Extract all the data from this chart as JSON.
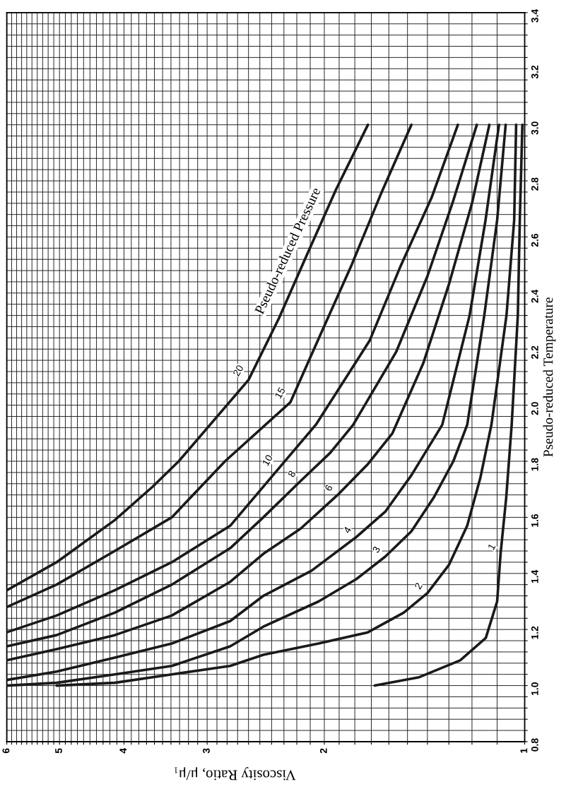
{
  "chart_data": {
    "type": "line",
    "xlabel": "Viscosity Ratio, μ/μ₁",
    "ylabel": "Pseudo-reduced Temperature",
    "log": "x",
    "grid": true,
    "legend": false,
    "marker": "none",
    "line_style": "solid",
    "xlim": [
      6,
      1
    ],
    "ylim": [
      0.8,
      3.4
    ],
    "xticks": [
      {
        "value": 1,
        "label": "1"
      },
      {
        "value": 1.1,
        "label": null
      },
      {
        "value": 1.2,
        "label": null
      },
      {
        "value": 1.3,
        "label": null
      },
      {
        "value": 1.4,
        "label": null
      },
      {
        "value": 1.5,
        "label": null
      },
      {
        "value": 1.6,
        "label": null
      },
      {
        "value": 1.7,
        "label": null
      },
      {
        "value": 1.8,
        "label": null
      },
      {
        "value": 1.9,
        "label": null
      },
      {
        "value": 2,
        "label": "2"
      },
      {
        "value": 2.1,
        "label": null
      },
      {
        "value": 2.2,
        "label": null
      },
      {
        "value": 2.3,
        "label": null
      },
      {
        "value": 2.4,
        "label": null
      },
      {
        "value": 2.5,
        "label": null
      },
      {
        "value": 2.6,
        "label": null
      },
      {
        "value": 2.7,
        "label": null
      },
      {
        "value": 2.8,
        "label": null
      },
      {
        "value": 2.9,
        "label": null
      },
      {
        "value": 3,
        "label": "3"
      },
      {
        "value": 3.1,
        "label": null
      },
      {
        "value": 3.2,
        "label": null
      },
      {
        "value": 3.3,
        "label": null
      },
      {
        "value": 3.4,
        "label": null
      },
      {
        "value": 3.5,
        "label": null
      },
      {
        "value": 3.6,
        "label": null
      },
      {
        "value": 3.7,
        "label": null
      },
      {
        "value": 3.8,
        "label": null
      },
      {
        "value": 3.9,
        "label": null
      },
      {
        "value": 4,
        "label": "4"
      },
      {
        "value": 4.1,
        "label": null
      },
      {
        "value": 4.2,
        "label": null
      },
      {
        "value": 4.3,
        "label": null
      },
      {
        "value": 4.4,
        "label": null
      },
      {
        "value": 4.5,
        "label": null
      },
      {
        "value": 4.6,
        "label": null
      },
      {
        "value": 4.7,
        "label": null
      },
      {
        "value": 4.8,
        "label": null
      },
      {
        "value": 4.9,
        "label": null
      },
      {
        "value": 5,
        "label": "5"
      },
      {
        "value": 5.1,
        "label": null
      },
      {
        "value": 5.2,
        "label": null
      },
      {
        "value": 5.3,
        "label": null
      },
      {
        "value": 5.4,
        "label": null
      },
      {
        "value": 5.5,
        "label": null
      },
      {
        "value": 5.6,
        "label": null
      },
      {
        "value": 5.7,
        "label": null
      },
      {
        "value": 5.8,
        "label": null
      },
      {
        "value": 5.9,
        "label": null
      },
      {
        "value": 6,
        "label": "6"
      }
    ],
    "yticks": [
      {
        "value": 0.8,
        "label": "0.8"
      },
      {
        "value": 0.84,
        "label": null
      },
      {
        "value": 0.88,
        "label": null
      },
      {
        "value": 0.92,
        "label": null
      },
      {
        "value": 0.96,
        "label": null
      },
      {
        "value": 1.0,
        "label": "1.0"
      },
      {
        "value": 1.04,
        "label": null
      },
      {
        "value": 1.08,
        "label": null
      },
      {
        "value": 1.12,
        "label": null
      },
      {
        "value": 1.16,
        "label": null
      },
      {
        "value": 1.2,
        "label": "1.2"
      },
      {
        "value": 1.24,
        "label": null
      },
      {
        "value": 1.28,
        "label": null
      },
      {
        "value": 1.32,
        "label": null
      },
      {
        "value": 1.36,
        "label": null
      },
      {
        "value": 1.4,
        "label": "1.4"
      },
      {
        "value": 1.44,
        "label": null
      },
      {
        "value": 1.48,
        "label": null
      },
      {
        "value": 1.52,
        "label": null
      },
      {
        "value": 1.56,
        "label": null
      },
      {
        "value": 1.6,
        "label": "1.6"
      },
      {
        "value": 1.64,
        "label": null
      },
      {
        "value": 1.68,
        "label": null
      },
      {
        "value": 1.72,
        "label": null
      },
      {
        "value": 1.76,
        "label": null
      },
      {
        "value": 1.8,
        "label": "1.8"
      },
      {
        "value": 1.84,
        "label": null
      },
      {
        "value": 1.88,
        "label": null
      },
      {
        "value": 1.92,
        "label": null
      },
      {
        "value": 1.96,
        "label": null
      },
      {
        "value": 2.0,
        "label": "2.0"
      },
      {
        "value": 2.04,
        "label": null
      },
      {
        "value": 2.08,
        "label": null
      },
      {
        "value": 2.12,
        "label": null
      },
      {
        "value": 2.16,
        "label": null
      },
      {
        "value": 2.2,
        "label": "2.2"
      },
      {
        "value": 2.24,
        "label": null
      },
      {
        "value": 2.28,
        "label": null
      },
      {
        "value": 2.32,
        "label": null
      },
      {
        "value": 2.36,
        "label": null
      },
      {
        "value": 2.4,
        "label": "2.4"
      },
      {
        "value": 2.44,
        "label": null
      },
      {
        "value": 2.48,
        "label": null
      },
      {
        "value": 2.52,
        "label": null
      },
      {
        "value": 2.56,
        "label": null
      },
      {
        "value": 2.6,
        "label": "2.6"
      },
      {
        "value": 2.64,
        "label": null
      },
      {
        "value": 2.68,
        "label": null
      },
      {
        "value": 2.72,
        "label": null
      },
      {
        "value": 2.76,
        "label": null
      },
      {
        "value": 2.8,
        "label": "2.8"
      },
      {
        "value": 2.84,
        "label": null
      },
      {
        "value": 2.88,
        "label": null
      },
      {
        "value": 2.92,
        "label": null
      },
      {
        "value": 2.96,
        "label": null
      },
      {
        "value": 3.0,
        "label": "3.0"
      },
      {
        "value": 3.04,
        "label": null
      },
      {
        "value": 3.08,
        "label": null
      },
      {
        "value": 3.12,
        "label": null
      },
      {
        "value": 3.16,
        "label": null
      },
      {
        "value": 3.2,
        "label": "3.2"
      },
      {
        "value": 3.24,
        "label": null
      },
      {
        "value": 3.28,
        "label": null
      },
      {
        "value": 3.32,
        "label": null
      },
      {
        "value": 3.36,
        "label": null
      },
      {
        "value": 3.4,
        "label": "3.4"
      }
    ],
    "annotations": [
      {
        "text": "Pseudo-reduced Pressure",
        "x": 2.34,
        "y": 2.31
      }
    ],
    "series": [
      {
        "name": "20",
        "color": "#1a1a1a",
        "x": [
          6.0,
          5.05,
          4.13,
          3.62,
          3.31,
          2.6,
          2.34,
          2.13,
          1.92,
          1.72
        ],
        "values": [
          1.34,
          1.44,
          1.59,
          1.71,
          1.8,
          2.09,
          2.31,
          2.53,
          2.77,
          3.0
        ]
      },
      {
        "name": "15",
        "color": "#1a1a1a",
        "x": [
          6.0,
          5.05,
          4.13,
          3.39,
          2.82,
          2.25,
          2.02,
          1.82,
          1.64,
          1.48
        ],
        "values": [
          1.28,
          1.36,
          1.48,
          1.6,
          1.8,
          2.01,
          2.26,
          2.5,
          2.76,
          3.0
        ]
      },
      {
        "name": "10",
        "color": "#1a1a1a",
        "x": [
          6.0,
          5.05,
          4.13,
          3.39,
          2.77,
          2.35,
          2.06,
          1.71,
          1.54,
          1.38,
          1.26
        ],
        "values": [
          1.19,
          1.25,
          1.34,
          1.44,
          1.57,
          1.77,
          1.93,
          2.23,
          2.49,
          2.74,
          3.0
        ]
      },
      {
        "name": "8",
        "color": "#1a1a1a",
        "x": [
          6.0,
          5.05,
          4.13,
          3.39,
          2.77,
          2.47,
          2.17,
          1.96,
          1.81,
          1.56,
          1.4,
          1.28,
          1.18
        ],
        "values": [
          1.14,
          1.18,
          1.26,
          1.36,
          1.49,
          1.6,
          1.73,
          1.83,
          1.93,
          2.19,
          2.46,
          2.73,
          3.0
        ]
      },
      {
        "name": "6",
        "color": "#1a1a1a",
        "x": [
          6.0,
          5.05,
          4.13,
          3.39,
          2.77,
          2.47,
          2.17,
          1.91,
          1.72,
          1.58,
          1.42,
          1.3,
          1.2,
          1.13
        ],
        "values": [
          1.09,
          1.13,
          1.18,
          1.25,
          1.37,
          1.47,
          1.56,
          1.68,
          1.79,
          1.9,
          2.15,
          2.43,
          2.72,
          3.0
        ]
      },
      {
        "name": "4",
        "color": "#1a1a1a",
        "x": [
          6.0,
          5.05,
          4.13,
          3.39,
          2.77,
          2.47,
          2.09,
          1.79,
          1.62,
          1.48,
          1.33,
          1.21,
          1.145,
          1.093
        ],
        "values": [
          1.02,
          1.05,
          1.1,
          1.15,
          1.23,
          1.32,
          1.41,
          1.53,
          1.62,
          1.75,
          1.93,
          2.32,
          2.66,
          3.0
        ]
      },
      {
        "name": "3",
        "color": "#1a1a1a",
        "x": [
          6.0,
          5.05,
          4.13,
          3.39,
          2.77,
          2.47,
          2.04,
          1.79,
          1.62,
          1.48,
          1.37,
          1.28,
          1.22,
          1.15,
          1.1,
          1.068
        ],
        "values": [
          1.0,
          1.01,
          1.04,
          1.07,
          1.14,
          1.21,
          1.3,
          1.38,
          1.46,
          1.55,
          1.67,
          1.8,
          1.93,
          2.32,
          2.66,
          3.0
        ]
      },
      {
        "name": "2",
        "color": "#1a1a1a",
        "x": [
          5.05,
          4.13,
          3.39,
          2.77,
          2.47,
          2.04,
          1.72,
          1.52,
          1.4,
          1.3,
          1.22,
          1.166,
          1.122,
          1.065,
          1.037,
          1.03
        ],
        "values": [
          1.0,
          1.01,
          1.04,
          1.07,
          1.11,
          1.15,
          1.19,
          1.26,
          1.33,
          1.43,
          1.57,
          1.74,
          1.93,
          2.32,
          2.66,
          3.0
        ]
      },
      {
        "name": "1",
        "color": "#1a1a1a",
        "x": [
          1.68,
          1.44,
          1.25,
          1.144,
          1.1,
          1.087,
          1.066,
          1.046,
          1.024,
          1.017,
          1.008
        ],
        "values": [
          1.0,
          1.03,
          1.09,
          1.17,
          1.3,
          1.47,
          1.67,
          1.93,
          2.32,
          2.66,
          3.0
        ]
      }
    ]
  }
}
